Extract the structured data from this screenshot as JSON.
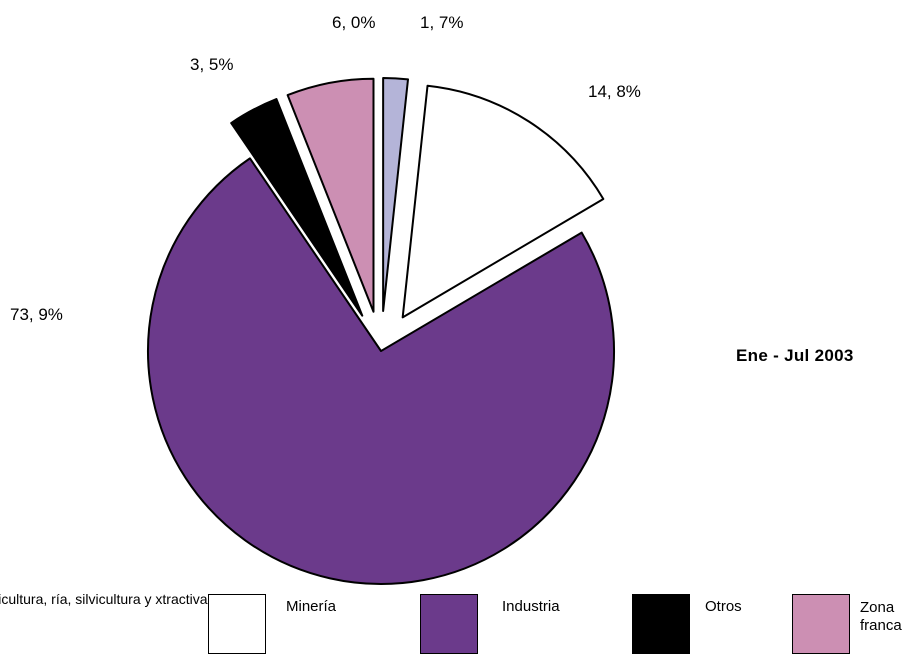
{
  "chart_data": {
    "type": "pie",
    "slices": [
      {
        "label": "Agricultura, fruticultura, ganadería, silvicultura y pesca extractiva",
        "value": 1.7,
        "value_label": "1, 7%",
        "color": "#b4b4d8",
        "exploded": true
      },
      {
        "label": "Minería",
        "value": 14.8,
        "value_label": "14, 8%",
        "color": "#ffffff",
        "exploded": true
      },
      {
        "label": "Industria",
        "value": 73.9,
        "value_label": "73, 9%",
        "color": "#6b3a8b",
        "exploded": false
      },
      {
        "label": "Otros",
        "value": 3.5,
        "value_label": "3, 5%",
        "color": "#000000",
        "exploded": true
      },
      {
        "label": "Zona franca",
        "value": 6.0,
        "value_label": "6, 0%",
        "color": "#cc8fb3",
        "exploded": true
      }
    ],
    "period_label": "Ene - Jul 2003"
  },
  "legend": {
    "first_visible_text": "ura, fruticultura, ría, silvicultura y xtractiva",
    "items": [
      {
        "label": "Minería"
      },
      {
        "label": "Industria"
      },
      {
        "label": "Otros"
      },
      {
        "label": "Zona franca"
      }
    ]
  }
}
